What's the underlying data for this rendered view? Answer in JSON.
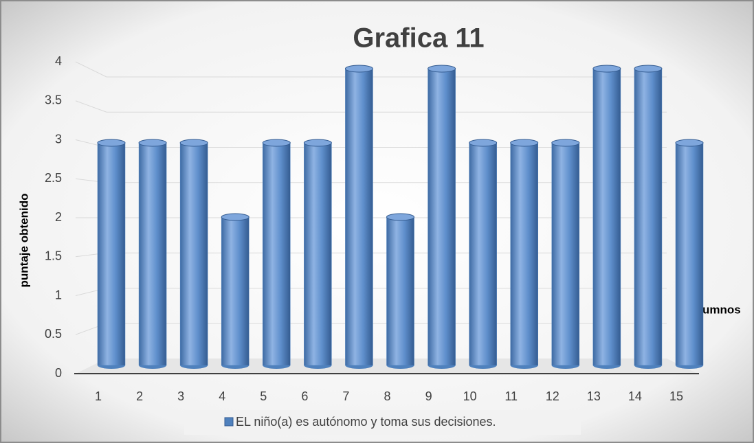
{
  "chart_data": {
    "type": "bar",
    "title": "Grafica 11",
    "y_label": "puntaje obtenido",
    "x_label": "Alumnos",
    "categories": [
      "1",
      "2",
      "3",
      "4",
      "5",
      "6",
      "7",
      "8",
      "9",
      "10",
      "11",
      "12",
      "13",
      "14",
      "15"
    ],
    "series": [
      {
        "name": "EL niño(a) es autónomo y toma sus decisiones.",
        "color": "#4f81bd",
        "values": [
          3,
          3,
          3,
          2,
          3,
          3,
          4,
          2,
          4,
          3,
          3,
          3,
          4,
          4,
          3
        ]
      }
    ],
    "ylim": [
      0,
      4
    ],
    "yticks": [
      0,
      0.5,
      1,
      1.5,
      2,
      2.5,
      3,
      3.5,
      4
    ],
    "grid": true,
    "legend": "bottom"
  }
}
